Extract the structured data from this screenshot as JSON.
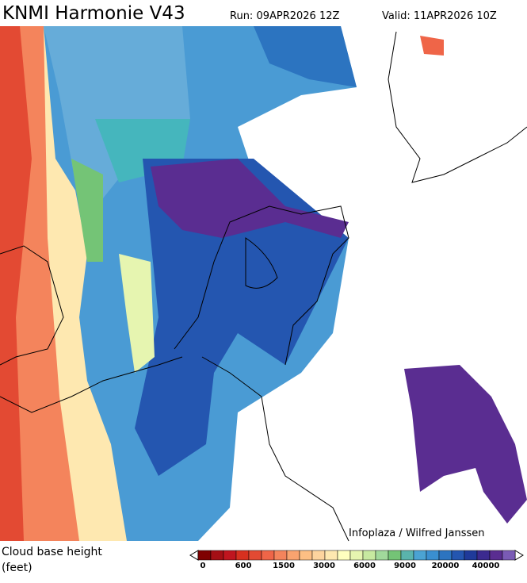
{
  "header": {
    "title": "KNMI Harmonie V43",
    "run": "Run: 09APR2026 12Z",
    "valid": "Valid: 11APR2026 10Z"
  },
  "credit": "Infoplaza / Wilfred Janssen",
  "legend": {
    "title": "Cloud base height",
    "unit": "(feet)",
    "colors": [
      "#7f0000",
      "#a50f15",
      "#c0151f",
      "#d7301f",
      "#e34a33",
      "#ef6548",
      "#f4845c",
      "#f9a36f",
      "#fdbf84",
      "#fdd49e",
      "#fee8b0",
      "#ffffbf",
      "#e6f5b0",
      "#c7e9a0",
      "#a1d99b",
      "#74c476",
      "#5ab4ac",
      "#4ba3d3",
      "#3a8fd0",
      "#2c74c0",
      "#2456b0",
      "#1f3a9a",
      "#3b2a8f",
      "#5a2d91",
      "#7a5bb5"
    ],
    "ticks": [
      0,
      600,
      1500,
      3000,
      6000,
      9000,
      20000,
      40000
    ]
  }
}
